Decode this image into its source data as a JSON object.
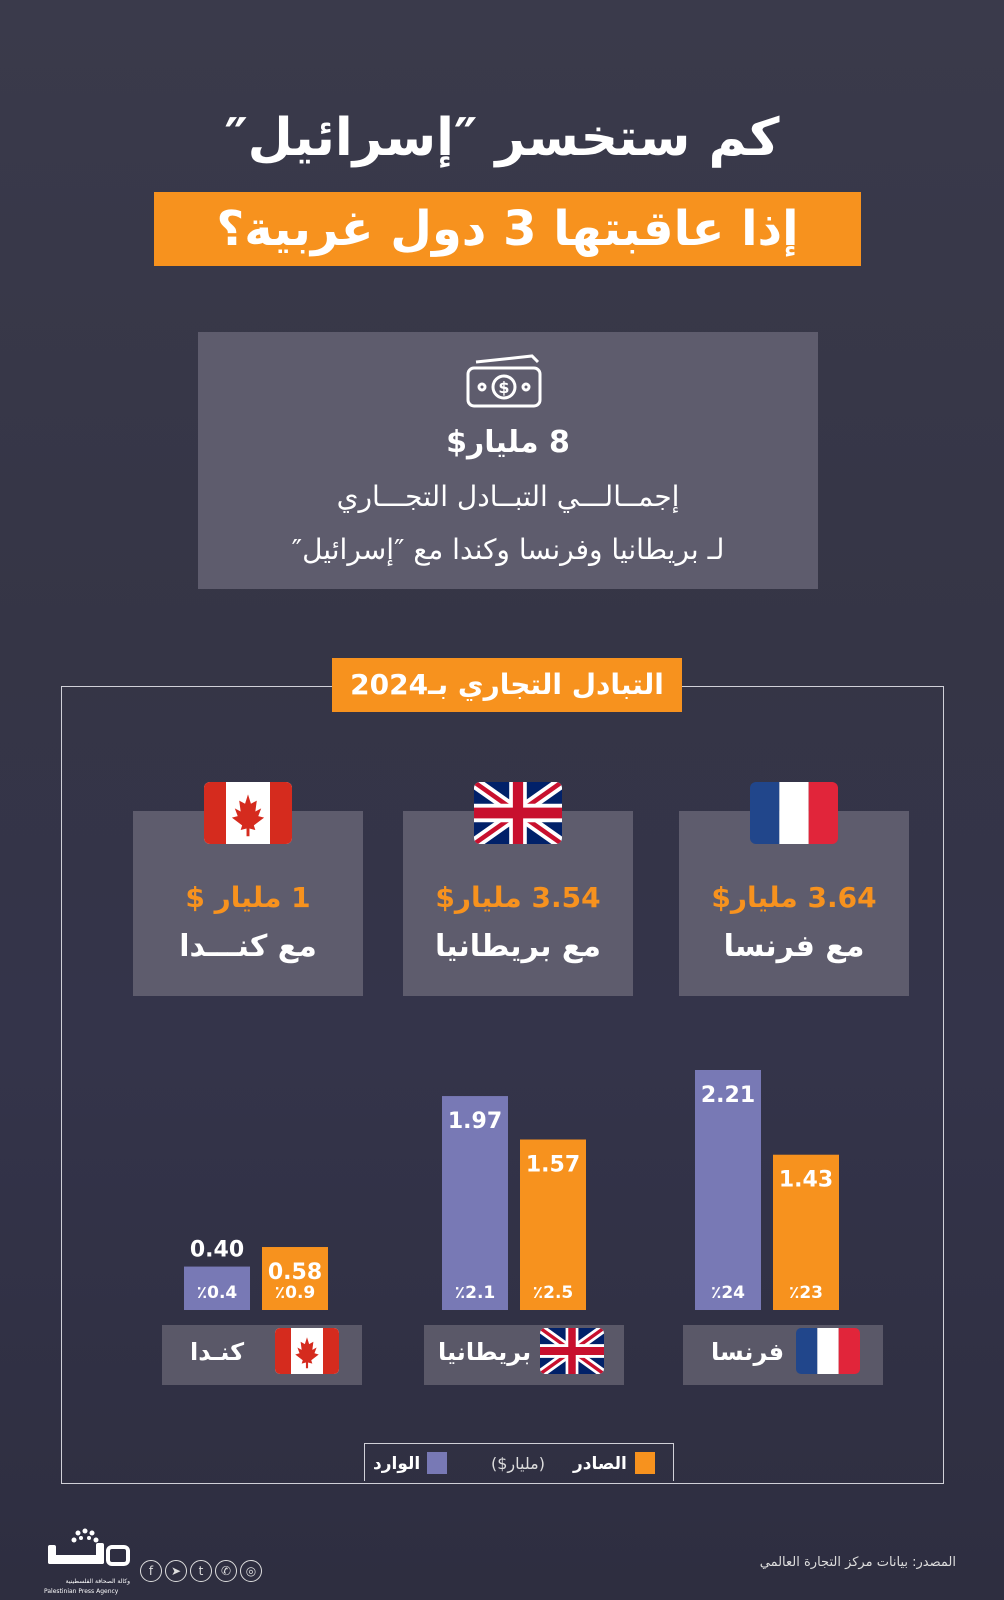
{
  "header": {
    "title_line1": "كم ستخسر ″إسرائيل″",
    "title_line2": "إذا عاقبتها 3 دول غربية؟"
  },
  "summary": {
    "icon": "money-bill-icon",
    "amount": "8 مليار$",
    "line1": "إجمــالـــي التبــادل التجـــاري",
    "line2": "لـ بريطانيا وفرنسا وكندا مع ″إسرائيل″"
  },
  "section_title": "التبادل التجاري بـ2024",
  "cards": [
    {
      "amount": "3.64 مليار$",
      "label": "مع فرنسا",
      "flag": "france-flag-icon"
    },
    {
      "amount": "3.54 مليار$",
      "label": "مع بريطانيا",
      "flag": "uk-flag-icon"
    },
    {
      "amount": "1 مليار $",
      "label": "مع كنـــدا",
      "flag": "canada-flag-icon"
    }
  ],
  "chart_data": {
    "type": "bar",
    "categories": [
      "فرنسا",
      "بريطانيا",
      "كنـدا"
    ],
    "series": [
      {
        "name": "الوارد",
        "values": [
          2.21,
          1.97,
          0.4
        ],
        "labels": [
          "2.21",
          "1.97",
          "0.40"
        ],
        "percent_labels": [
          "٪24",
          "٪2.1",
          "٪0.4"
        ],
        "color": "#7879b5"
      },
      {
        "name": "الصادر",
        "values": [
          1.43,
          1.57,
          0.58
        ],
        "labels": [
          "1.43",
          "1.57",
          "0.58"
        ],
        "percent_labels": [
          "٪23",
          "٪2.5",
          "٪0.9"
        ],
        "color": "#f7921e"
      }
    ],
    "unit_label": "(مليار$)",
    "legend_placement": "bottom"
  },
  "source": "المصدر: بيانات مركز التجارة العالمي",
  "logo": {
    "sub_ar": "وكالة الصحافة الفلسطينية",
    "sub_en": "Palestinian Press Agency"
  },
  "colors": {
    "accent": "#f7921e",
    "import": "#7879b5",
    "card": "#5e5c6d"
  }
}
